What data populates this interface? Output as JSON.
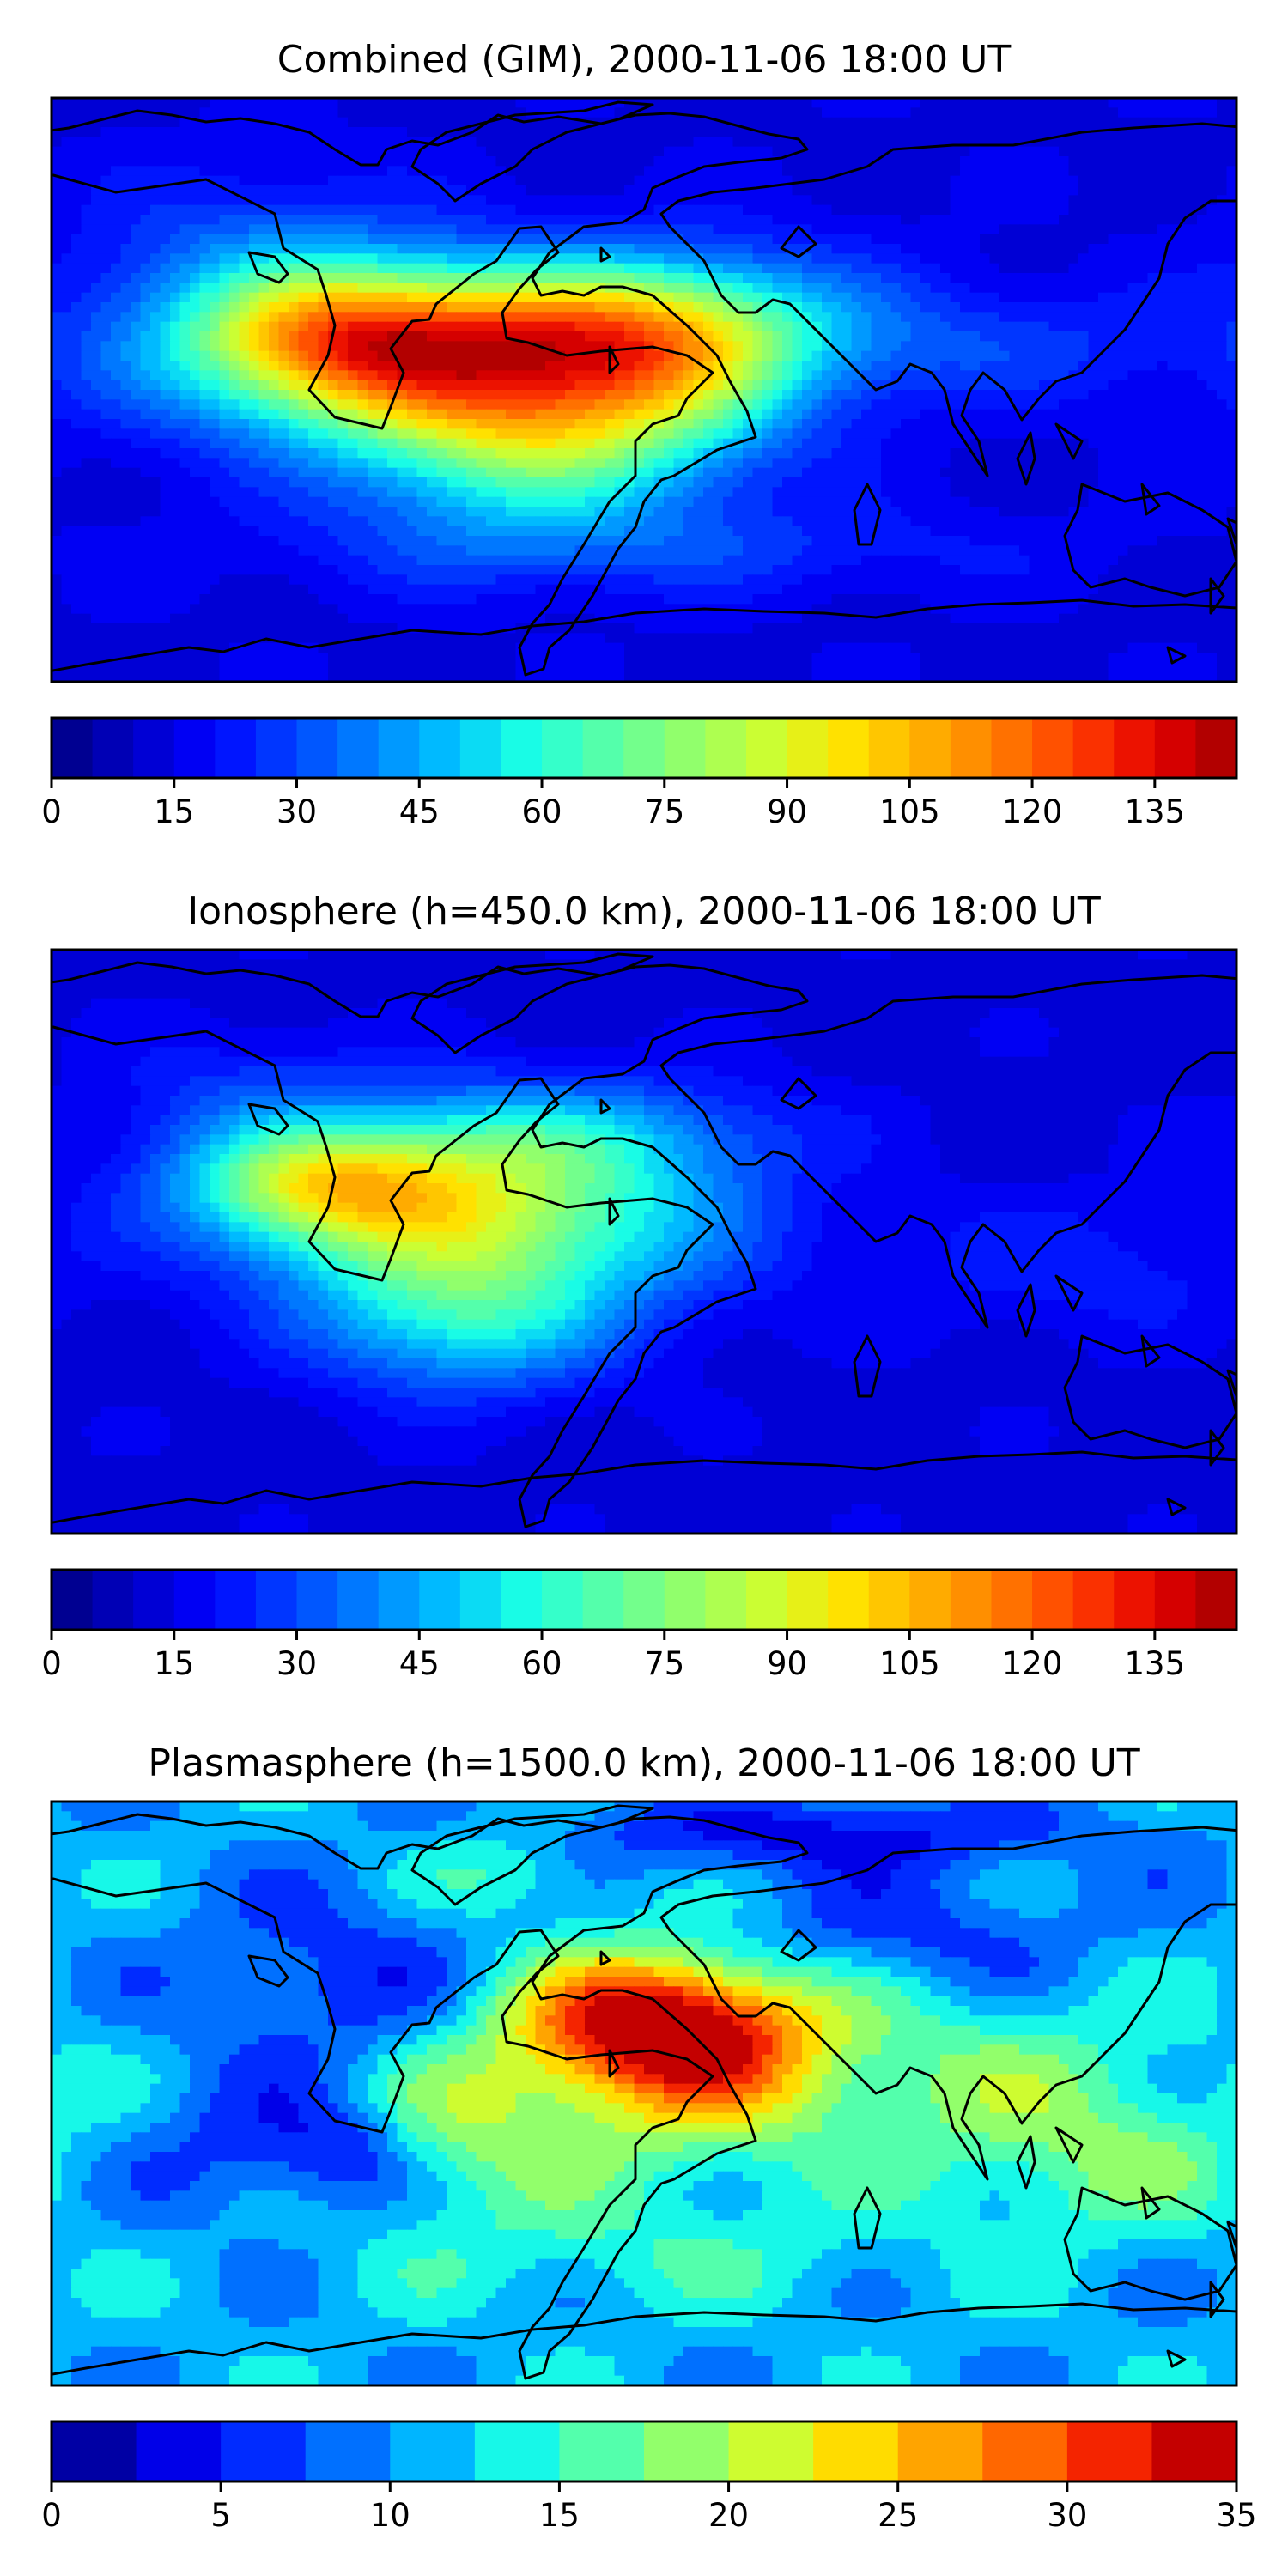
{
  "colormap": [
    "#00007f",
    "#0000c4",
    "#0000ff",
    "#0040ff",
    "#0080ff",
    "#00c0ff",
    "#1affe5",
    "#55ffaa",
    "#90ff6d",
    "#c8ff36",
    "#ffe500",
    "#ffb200",
    "#ff7b00",
    "#ff3c00",
    "#e40000",
    "#a00000"
  ],
  "chart_data": [
    {
      "type": "heatmap",
      "title": "Combined (GIM), 2000-11-06 18:00 UT",
      "colorbar": {
        "range": [
          0,
          145
        ],
        "levels": 29,
        "ticks": [
          "0",
          "15",
          "30",
          "45",
          "60",
          "75",
          "90",
          "105",
          "120",
          "135"
        ],
        "tick_values": [
          0,
          15,
          30,
          45,
          60,
          75,
          90,
          105,
          120,
          135
        ]
      },
      "field": {
        "base": 14,
        "features": [
          {
            "lon": -60,
            "lat": 8,
            "amp": 86,
            "slon": 55,
            "slat": 18
          },
          {
            "lon": -35,
            "lat": -20,
            "amp": 48,
            "slon": 38,
            "slat": 18
          },
          {
            "lon": -95,
            "lat": 15,
            "amp": 42,
            "slon": 30,
            "slat": 14
          },
          {
            "lon": -10,
            "lat": 15,
            "amp": 30,
            "slon": 35,
            "slat": 14
          },
          {
            "lon": 10,
            "lat": 0,
            "amp": 24,
            "slon": 30,
            "slat": 18
          },
          {
            "lon": 25,
            "lat": 20,
            "amp": 20,
            "slon": 40,
            "slat": 15
          },
          {
            "lon": 110,
            "lat": 10,
            "amp": 12,
            "slon": 40,
            "slat": 12
          },
          {
            "lon": -120,
            "lat": 40,
            "amp": 14,
            "slon": 35,
            "slat": 18
          },
          {
            "lon": 0,
            "lat": -50,
            "amp": 12,
            "slon": 80,
            "slat": 10
          }
        ]
      }
    },
    {
      "type": "heatmap",
      "title": "Ionosphere  (h=450.0 km), 2000-11-06 18:00 UT",
      "colorbar": {
        "range": [
          0,
          145
        ],
        "levels": 29,
        "ticks": [
          "0",
          "15",
          "30",
          "45",
          "60",
          "75",
          "90",
          "105",
          "120",
          "135"
        ],
        "tick_values": [
          0,
          15,
          30,
          45,
          60,
          75,
          90,
          105,
          120,
          135
        ]
      },
      "field": {
        "base": 13,
        "features": [
          {
            "lon": -60,
            "lat": 8,
            "amp": 62,
            "slon": 45,
            "slat": 18
          },
          {
            "lon": -100,
            "lat": 15,
            "amp": 46,
            "slon": 28,
            "slat": 12
          },
          {
            "lon": -55,
            "lat": -25,
            "amp": 40,
            "slon": 32,
            "slat": 16
          },
          {
            "lon": -40,
            "lat": 30,
            "amp": 18,
            "slon": 30,
            "slat": 12
          },
          {
            "lon": 10,
            "lat": 30,
            "amp": 14,
            "slon": 35,
            "slat": 12
          },
          {
            "lon": 0,
            "lat": 0,
            "amp": 14,
            "slon": 35,
            "slat": 18
          },
          {
            "lon": 130,
            "lat": -10,
            "amp": 10,
            "slon": 40,
            "slat": 15
          },
          {
            "lon": -120,
            "lat": 40,
            "amp": 12,
            "slon": 30,
            "slat": 15
          }
        ]
      }
    },
    {
      "type": "heatmap",
      "title": "Plasmasphere (h=1500.0 km), 2000-11-06 18:00 UT",
      "colorbar": {
        "range": [
          0,
          35
        ],
        "levels": 14,
        "ticks": [
          "0",
          "5",
          "10",
          "15",
          "20",
          "25",
          "30",
          "35"
        ],
        "tick_values": [
          0,
          5,
          10,
          15,
          20,
          25,
          30,
          35
        ]
      },
      "field": {
        "base": 11,
        "features": [
          {
            "lon": 5,
            "lat": 20,
            "amp": 19,
            "slon": 30,
            "slat": 14
          },
          {
            "lon": 20,
            "lat": 5,
            "amp": 8,
            "slon": 30,
            "slat": 18
          },
          {
            "lon": -30,
            "lat": 0,
            "amp": 6,
            "slon": 40,
            "slat": 25
          },
          {
            "lon": -55,
            "lat": -15,
            "amp": 4,
            "slon": 20,
            "slat": 15
          },
          {
            "lon": 100,
            "lat": 0,
            "amp": 6,
            "slon": 50,
            "slat": 20
          },
          {
            "lon": 140,
            "lat": -25,
            "amp": 5,
            "slon": 30,
            "slat": 15
          },
          {
            "lon": -90,
            "lat": 30,
            "amp": -6,
            "slon": 35,
            "slat": 20
          },
          {
            "lon": -120,
            "lat": -20,
            "amp": -5,
            "slon": 25,
            "slat": 15
          },
          {
            "lon": -90,
            "lat": -20,
            "amp": -5,
            "slon": 15,
            "slat": 10
          },
          {
            "lon": 50,
            "lat": 75,
            "amp": -7,
            "slon": 60,
            "slat": 8
          },
          {
            "lon": 80,
            "lat": 45,
            "amp": -5,
            "slon": 40,
            "slat": 12
          },
          {
            "lon": -40,
            "lat": 65,
            "amp": 5,
            "slon": 20,
            "slat": 10
          },
          {
            "lon": 0,
            "lat": -50,
            "amp": 3,
            "slon": 60,
            "slat": 12
          }
        ]
      }
    }
  ]
}
